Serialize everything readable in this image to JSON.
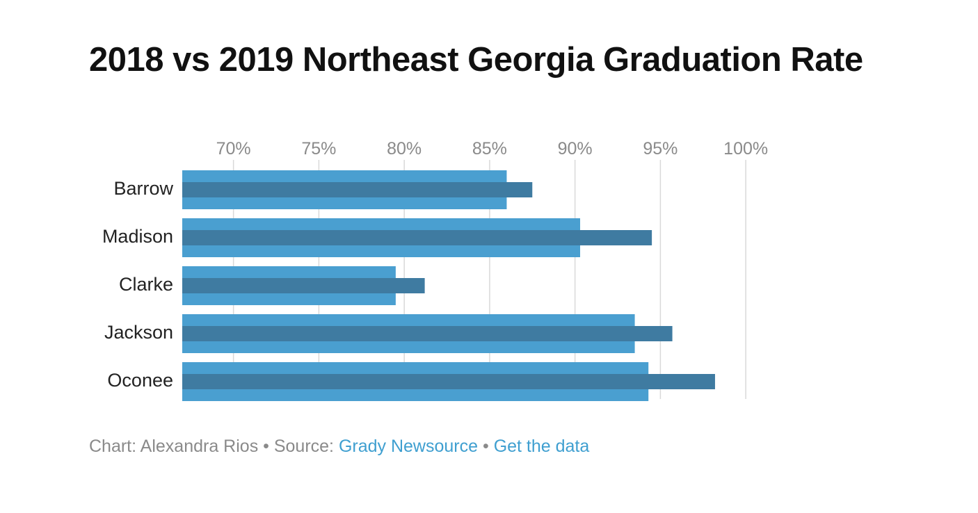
{
  "title": "2018 vs 2019 Northeast Georgia Graduation Rate",
  "footer": {
    "credit_prefix": "Chart: ",
    "credit_name": "Alexandra Rios",
    "separator": " • ",
    "source_prefix": "Source: ",
    "source_link": "Grady Newsource",
    "data_link": "Get the data"
  },
  "colors": {
    "series_2018": "#4a9fd0",
    "series_2019": "#3f7ba1",
    "grid": "#d9d9d9",
    "link": "#3f9fd0"
  },
  "chart_data": {
    "type": "bar",
    "orientation": "horizontal",
    "title": "2018 vs 2019 Northeast Georgia Graduation Rate",
    "categories": [
      "Barrow",
      "Madison",
      "Clarke",
      "Jackson",
      "Oconee"
    ],
    "series": [
      {
        "values": [
          86.0,
          90.3,
          79.5,
          93.5,
          94.3
        ]
      },
      {
        "values": [
          87.5,
          94.5,
          81.2,
          95.7,
          98.2
        ]
      }
    ],
    "xlim": [
      67,
      100
    ],
    "xticks": [
      70,
      75,
      80,
      85,
      90,
      95,
      100
    ],
    "xtick_labels": [
      "70%",
      "75%",
      "80%",
      "85%",
      "90%",
      "95%",
      "100%"
    ],
    "xlabel": "",
    "ylabel": "",
    "grid": true,
    "axis_position": "top",
    "legend": false
  }
}
